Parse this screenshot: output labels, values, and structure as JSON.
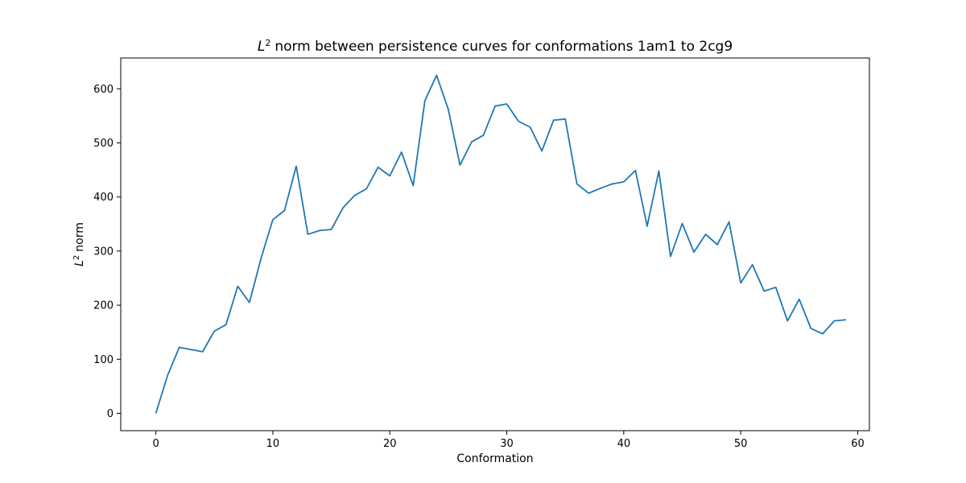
{
  "chart_data": {
    "type": "line",
    "title": "norm between persistence curves for conformations 1am1 to 2cg9",
    "title_math": "L",
    "title_sup": "2",
    "xlabel": "Conformation",
    "ylabel": "norm",
    "ylabel_math": "L",
    "ylabel_sup": "2",
    "xlim": [
      -3,
      61
    ],
    "ylim": [
      -32,
      657
    ],
    "xticks": [
      0,
      10,
      20,
      30,
      40,
      50,
      60
    ],
    "yticks": [
      0,
      100,
      200,
      300,
      400,
      500,
      600
    ],
    "grid": false,
    "line_color": "#1f77b4",
    "series": [
      {
        "x": [
          0,
          1,
          2,
          3,
          4,
          5,
          6,
          7,
          8,
          9,
          10,
          11,
          12,
          13,
          14,
          15,
          16,
          17,
          18,
          19,
          20,
          21,
          22,
          23,
          24,
          25,
          26,
          27,
          28,
          29,
          30,
          31,
          32,
          33,
          34,
          35,
          36,
          37,
          38,
          39,
          40,
          41,
          42,
          43,
          44,
          45,
          46,
          47,
          48,
          49,
          50,
          51,
          52,
          53,
          54,
          55,
          56,
          57,
          58,
          59
        ],
        "y": [
          0,
          70,
          122,
          118,
          114,
          152,
          164,
          235,
          205,
          287,
          358,
          375,
          457,
          331,
          338,
          340,
          380,
          403,
          415,
          455,
          439,
          483,
          421,
          578,
          625,
          562,
          459,
          502,
          514,
          568,
          572,
          540,
          529,
          485,
          542,
          544,
          424,
          407,
          416,
          424,
          428,
          449,
          346,
          448,
          290,
          351,
          298,
          331,
          312,
          354,
          241,
          275,
          226,
          233,
          171,
          211,
          157,
          147,
          171,
          173
        ]
      }
    ]
  }
}
